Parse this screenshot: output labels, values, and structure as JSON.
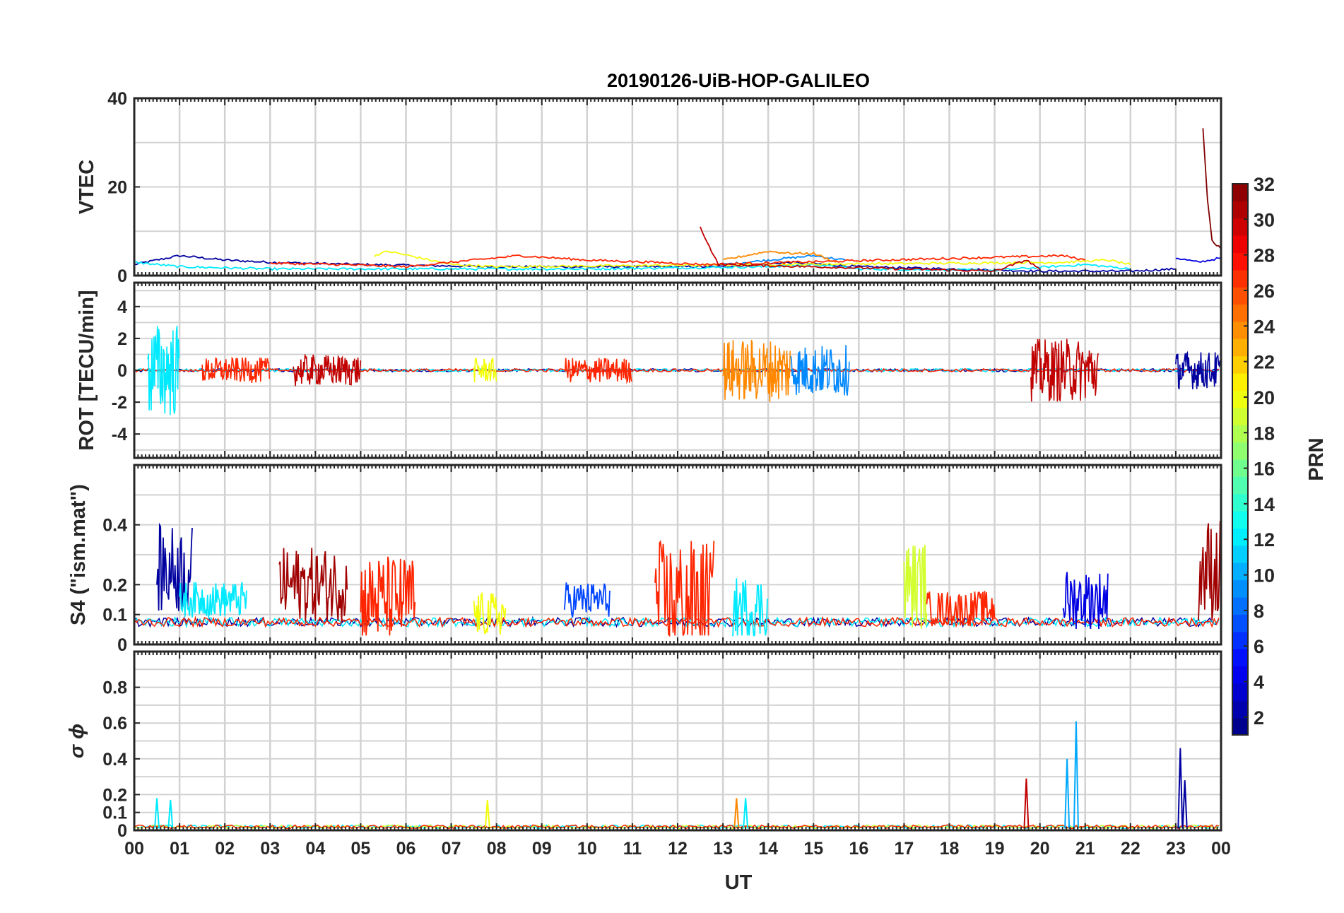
{
  "chart_data": {
    "type": "line",
    "title": "20190126-UiB-HOP-GALILEO",
    "xlabel": "UT",
    "x_ticks": [
      "00",
      "01",
      "02",
      "03",
      "04",
      "05",
      "06",
      "07",
      "08",
      "09",
      "10",
      "11",
      "12",
      "13",
      "14",
      "15",
      "16",
      "17",
      "18",
      "19",
      "20",
      "21",
      "22",
      "23",
      "00"
    ],
    "colorbar": {
      "label": "PRN",
      "range": [
        1,
        32
      ],
      "ticks": [
        "2",
        "4",
        "6",
        "8",
        "10",
        "12",
        "14",
        "16",
        "18",
        "20",
        "22",
        "24",
        "26",
        "28",
        "30",
        "32"
      ]
    },
    "panels": [
      {
        "id": "vtec",
        "ylabel": "VTEC",
        "ylim": [
          0,
          40
        ],
        "yticks": [
          0,
          20,
          40
        ],
        "ytick_labels": [
          "0",
          "20",
          "40"
        ],
        "series": [
          {
            "prn": 2,
            "values": [
              [
                0.0,
                2.5
              ],
              [
                1.0,
                4.5
              ],
              [
                2.0,
                3.5
              ],
              [
                3.0,
                3.0
              ],
              [
                5.0,
                2.5
              ],
              [
                8.0,
                2.0
              ],
              [
                11.0,
                2.0
              ],
              [
                13.0,
                2.0
              ],
              [
                14.5,
                3.0
              ],
              [
                16.0,
                2.0
              ],
              [
                20.0,
                1.0
              ],
              [
                22.0,
                1.0
              ],
              [
                23.0,
                1.5
              ]
            ]
          },
          {
            "prn": 4,
            "values": [
              [
                23.0,
                4.0
              ],
              [
                23.5,
                3.0
              ],
              [
                24.0,
                4.0
              ]
            ]
          },
          {
            "prn": 9,
            "values": [
              [
                13.0,
                2.5
              ],
              [
                14.0,
                3.5
              ],
              [
                15.0,
                4.5
              ],
              [
                15.7,
                3.5
              ]
            ]
          },
          {
            "prn": 12,
            "values": [
              [
                0.0,
                3.0
              ],
              [
                1.0,
                2.0
              ],
              [
                3.0,
                1.5
              ],
              [
                6.0,
                1.5
              ],
              [
                10.0,
                1.5
              ],
              [
                14.0,
                2.0
              ],
              [
                15.0,
                2.5
              ],
              [
                16.0,
                1.5
              ],
              [
                19.0,
                1.2
              ],
              [
                21.0,
                2.5
              ],
              [
                22.0,
                1.5
              ]
            ]
          },
          {
            "prn": 20,
            "values": [
              [
                5.3,
                4.5
              ],
              [
                5.6,
                5.5
              ],
              [
                7.0,
                2.5
              ],
              [
                8.0,
                2.0
              ],
              [
                20.5,
                3.0
              ],
              [
                21.5,
                3.5
              ],
              [
                22.0,
                2.5
              ]
            ]
          },
          {
            "prn": 24,
            "values": [
              [
                13.0,
                3.5
              ],
              [
                13.5,
                4.5
              ],
              [
                14.0,
                5.5
              ],
              [
                14.5,
                5.0
              ],
              [
                15.0,
                5.0
              ],
              [
                15.5,
                3.0
              ]
            ]
          },
          {
            "prn": 27,
            "values": [
              [
                3.0,
                2.8
              ],
              [
                4.5,
                2.5
              ],
              [
                6.0,
                2.0
              ],
              [
                8.5,
                4.5
              ],
              [
                10.0,
                3.5
              ],
              [
                11.5,
                3.0
              ],
              [
                12.6,
                2.5
              ],
              [
                20.5,
                4.5
              ],
              [
                21.0,
                3.5
              ]
            ]
          },
          {
            "prn": 30,
            "values": [
              [
                12.5,
                11.0
              ],
              [
                12.7,
                6.5
              ],
              [
                12.9,
                2.5
              ],
              [
                17.0,
                1.5
              ],
              [
                19.0,
                1.0
              ],
              [
                19.7,
                3.5
              ],
              [
                20.0,
                1.5
              ]
            ]
          },
          {
            "prn": 32,
            "values": [
              [
                23.6,
                33.0
              ],
              [
                23.7,
                17.0
              ],
              [
                23.8,
                8.0
              ],
              [
                24.0,
                6.0
              ]
            ]
          }
        ]
      },
      {
        "id": "rot",
        "ylabel": "ROT [TECU/min]",
        "ylim": [
          -5.5,
          5.5
        ],
        "yticks": [
          -4,
          -2,
          0,
          2,
          4
        ],
        "ytick_labels": [
          "-4",
          "-2",
          "0",
          "2",
          "4"
        ],
        "activity": [
          {
            "x0": 0.3,
            "x1": 1.0,
            "amp": 3.0,
            "prn": 12
          },
          {
            "x0": 1.5,
            "x1": 3.0,
            "amp": 0.8,
            "prn": 27
          },
          {
            "x0": 3.5,
            "x1": 5.0,
            "amp": 1.0,
            "prn": 30
          },
          {
            "x0": 7.5,
            "x1": 8.0,
            "amp": 0.8,
            "prn": 20
          },
          {
            "x0": 9.5,
            "x1": 11.0,
            "amp": 0.8,
            "prn": 27
          },
          {
            "x0": 13.0,
            "x1": 14.5,
            "amp": 2.0,
            "prn": 24
          },
          {
            "x0": 14.5,
            "x1": 15.8,
            "amp": 1.6,
            "prn": 9
          },
          {
            "x0": 19.8,
            "x1": 21.3,
            "amp": 2.0,
            "prn": 30
          },
          {
            "x0": 23.0,
            "x1": 24.0,
            "amp": 1.2,
            "prn": 2
          }
        ]
      },
      {
        "id": "s4",
        "ylabel": "S4 (\"ism.mat\")",
        "ylim": [
          0,
          0.6
        ],
        "yticks": [
          0,
          0.1,
          0.2,
          0.4
        ],
        "ytick_labels": [
          "0",
          "0.1",
          "0.2",
          "0.4"
        ],
        "activity": [
          {
            "x0": 0.5,
            "x1": 1.3,
            "base": 0.25,
            "amp": 0.3,
            "prn": 2
          },
          {
            "x0": 1.0,
            "x1": 2.5,
            "base": 0.15,
            "amp": 0.12,
            "prn": 12
          },
          {
            "x0": 3.2,
            "x1": 4.7,
            "base": 0.2,
            "amp": 0.25,
            "prn": 31
          },
          {
            "x0": 5.0,
            "x1": 6.2,
            "base": 0.15,
            "amp": 0.3,
            "prn": 27
          },
          {
            "x0": 7.5,
            "x1": 8.2,
            "base": 0.1,
            "amp": 0.15,
            "prn": 20
          },
          {
            "x0": 9.5,
            "x1": 10.5,
            "base": 0.15,
            "amp": 0.12,
            "prn": 7
          },
          {
            "x0": 11.5,
            "x1": 12.8,
            "base": 0.15,
            "amp": 0.4,
            "prn": 27
          },
          {
            "x0": 13.2,
            "x1": 14.0,
            "base": 0.12,
            "amp": 0.22,
            "prn": 12
          },
          {
            "x0": 17.0,
            "x1": 17.5,
            "base": 0.2,
            "amp": 0.3,
            "prn": 19
          },
          {
            "x0": 17.5,
            "x1": 19.0,
            "base": 0.12,
            "amp": 0.12,
            "prn": 27
          },
          {
            "x0": 20.5,
            "x1": 21.5,
            "base": 0.15,
            "amp": 0.2,
            "prn": 4
          },
          {
            "x0": 23.5,
            "x1": 24.0,
            "base": 0.25,
            "amp": 0.35,
            "prn": 31
          }
        ]
      },
      {
        "id": "sigma_phi",
        "ylabel": "σ ϕ",
        "ylim": [
          0,
          1.0
        ],
        "yticks": [
          0,
          0.1,
          0.2,
          0.4,
          0.6,
          0.8
        ],
        "ytick_labels": [
          "0",
          "0.1",
          "0.2",
          "0.4",
          "0.6",
          "0.8"
        ],
        "spikes": [
          {
            "x": 0.5,
            "value": 0.18,
            "prn": 12
          },
          {
            "x": 0.8,
            "value": 0.17,
            "prn": 12
          },
          {
            "x": 7.8,
            "value": 0.17,
            "prn": 20
          },
          {
            "x": 13.3,
            "value": 0.18,
            "prn": 24
          },
          {
            "x": 13.5,
            "value": 0.18,
            "prn": 12
          },
          {
            "x": 19.7,
            "value": 0.29,
            "prn": 30
          },
          {
            "x": 20.6,
            "value": 0.4,
            "prn": 10
          },
          {
            "x": 20.8,
            "value": 0.61,
            "prn": 10
          },
          {
            "x": 23.1,
            "value": 0.46,
            "prn": 2
          },
          {
            "x": 23.2,
            "value": 0.28,
            "prn": 2
          }
        ]
      }
    ]
  }
}
